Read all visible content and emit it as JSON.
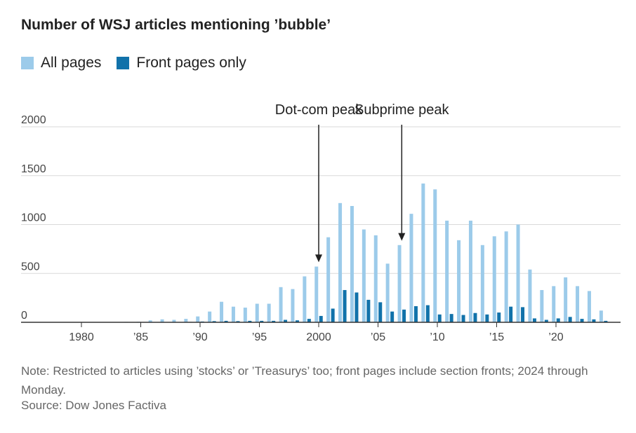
{
  "title": "Number of WSJ articles mentioning ’bubble’",
  "legend": {
    "all_pages": "All pages",
    "front_pages": "Front pages only"
  },
  "note": "Note: Restricted to articles using ’stocks’ or ’Treasurys’ too; front pages include section fronts; 2024 through Monday.",
  "source": "Source: Dow Jones Factiva",
  "colors": {
    "all_pages": "#9ccbea",
    "front_pages": "#1172aa",
    "grid": "#d9d9d9",
    "axis": "#333333"
  },
  "chart_data": {
    "type": "bar",
    "title": "Number of WSJ articles mentioning ’bubble’",
    "x": [
      1976,
      1977,
      1978,
      1979,
      1980,
      1981,
      1982,
      1983,
      1984,
      1985,
      1986,
      1987,
      1988,
      1989,
      1990,
      1991,
      1992,
      1993,
      1994,
      1995,
      1996,
      1997,
      1998,
      1999,
      2000,
      2001,
      2002,
      2003,
      2004,
      2005,
      2006,
      2007,
      2008,
      2009,
      2010,
      2011,
      2012,
      2013,
      2014,
      2015,
      2016,
      2017,
      2018,
      2019,
      2020,
      2021,
      2022,
      2023,
      2024
    ],
    "series": [
      {
        "name": "All pages",
        "values": [
          1,
          1,
          1,
          1,
          1,
          2,
          2,
          3,
          4,
          5,
          20,
          30,
          25,
          35,
          60,
          110,
          210,
          160,
          150,
          190,
          190,
          360,
          340,
          470,
          570,
          870,
          1220,
          1190,
          950,
          890,
          600,
          790,
          1110,
          1420,
          1360,
          1040,
          840,
          1040,
          790,
          880,
          930,
          1000,
          540,
          330,
          370,
          460,
          370,
          320,
          120
        ]
      },
      {
        "name": "Front pages only",
        "values": [
          0,
          0,
          0,
          0,
          0,
          0,
          0,
          0,
          0,
          0,
          2,
          3,
          2,
          4,
          8,
          12,
          15,
          12,
          15,
          15,
          15,
          25,
          20,
          35,
          65,
          140,
          330,
          305,
          230,
          205,
          110,
          130,
          165,
          175,
          80,
          85,
          75,
          95,
          80,
          100,
          160,
          155,
          40,
          25,
          40,
          55,
          35,
          30,
          15
        ]
      }
    ],
    "xticks": [
      {
        "value": 1980,
        "label": "1980"
      },
      {
        "value": 1985,
        "label": "’85"
      },
      {
        "value": 1990,
        "label": "’90"
      },
      {
        "value": 1995,
        "label": "’95"
      },
      {
        "value": 2000,
        "label": "2000"
      },
      {
        "value": 2005,
        "label": "’05"
      },
      {
        "value": 2010,
        "label": "’10"
      },
      {
        "value": 2015,
        "label": "’15"
      },
      {
        "value": 2020,
        "label": "’20"
      }
    ],
    "yticks": [
      0,
      500,
      1000,
      1500,
      2000
    ],
    "ylim": [
      0,
      2000
    ],
    "grid": true,
    "legend_position": "top-left",
    "annotations": [
      {
        "text": "Dot-com peak",
        "x": 2000,
        "target_value": 600
      },
      {
        "text": "Subprime peak",
        "x": 2007,
        "target_value": 820
      }
    ]
  }
}
